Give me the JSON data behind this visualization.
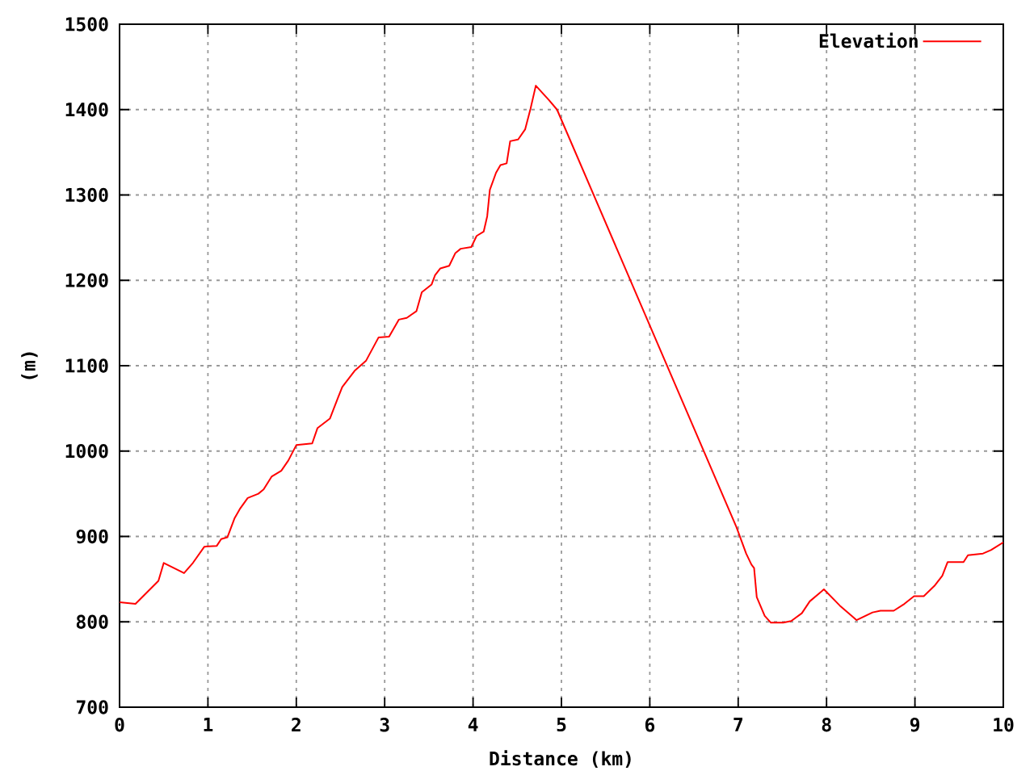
{
  "chart_data": {
    "type": "line",
    "xlabel": "Distance (km)",
    "ylabel": "(m)",
    "x": [
      0,
      0.18,
      0.44,
      0.5,
      0.73,
      0.83,
      0.96,
      1.1,
      1.15,
      1.22,
      1.3,
      1.36,
      1.45,
      1.57,
      1.63,
      1.72,
      1.83,
      1.91,
      2.0,
      2.18,
      2.24,
      2.38,
      2.47,
      2.52,
      2.66,
      2.79,
      2.93,
      3.05,
      3.16,
      3.25,
      3.36,
      3.42,
      3.53,
      3.57,
      3.63,
      3.73,
      3.8,
      3.86,
      3.98,
      4.04,
      4.12,
      4.16,
      4.19,
      4.26,
      4.31,
      4.38,
      4.42,
      4.51,
      4.59,
      4.65,
      4.71,
      4.86,
      4.95,
      6.98,
      7.09,
      7.15,
      7.18,
      7.21,
      7.3,
      7.37,
      7.51,
      7.6,
      7.72,
      7.81,
      7.97,
      8.15,
      8.34,
      8.52,
      8.61,
      8.76,
      8.88,
      8.99,
      9.1,
      9.22,
      9.31,
      9.37,
      9.55,
      9.6,
      9.77,
      9.86,
      10.0
    ],
    "series": [
      {
        "name": "Elevation",
        "color": "#ff0000",
        "values": [
          823,
          821,
          848,
          869,
          857,
          869,
          888,
          889,
          897,
          899,
          921,
          932,
          945,
          950,
          955,
          970,
          977,
          989,
          1007,
          1009,
          1027,
          1038,
          1062,
          1075,
          1094,
          1106,
          1133,
          1134,
          1154,
          1156,
          1164,
          1186,
          1195,
          1206,
          1214,
          1217,
          1232,
          1237,
          1239,
          1252,
          1257,
          1275,
          1306,
          1326,
          1335,
          1337,
          1363,
          1365,
          1377,
          1401,
          1428,
          1411,
          1400,
          911,
          880,
          867,
          863,
          829,
          807,
          799,
          799,
          801,
          810,
          824,
          838,
          819,
          802,
          811,
          813,
          813,
          821,
          830,
          830,
          842,
          854,
          870,
          870,
          878,
          880,
          884,
          893
        ]
      }
    ],
    "xlim": [
      0,
      10
    ],
    "ylim": [
      700,
      1500
    ],
    "xticks": [
      0,
      1,
      2,
      3,
      4,
      5,
      6,
      7,
      8,
      9,
      10
    ],
    "yticks": [
      700,
      800,
      900,
      1000,
      1100,
      1200,
      1300,
      1400,
      1500
    ],
    "grid": true,
    "legend": "top right",
    "marker": "none",
    "line_style": "solid"
  }
}
